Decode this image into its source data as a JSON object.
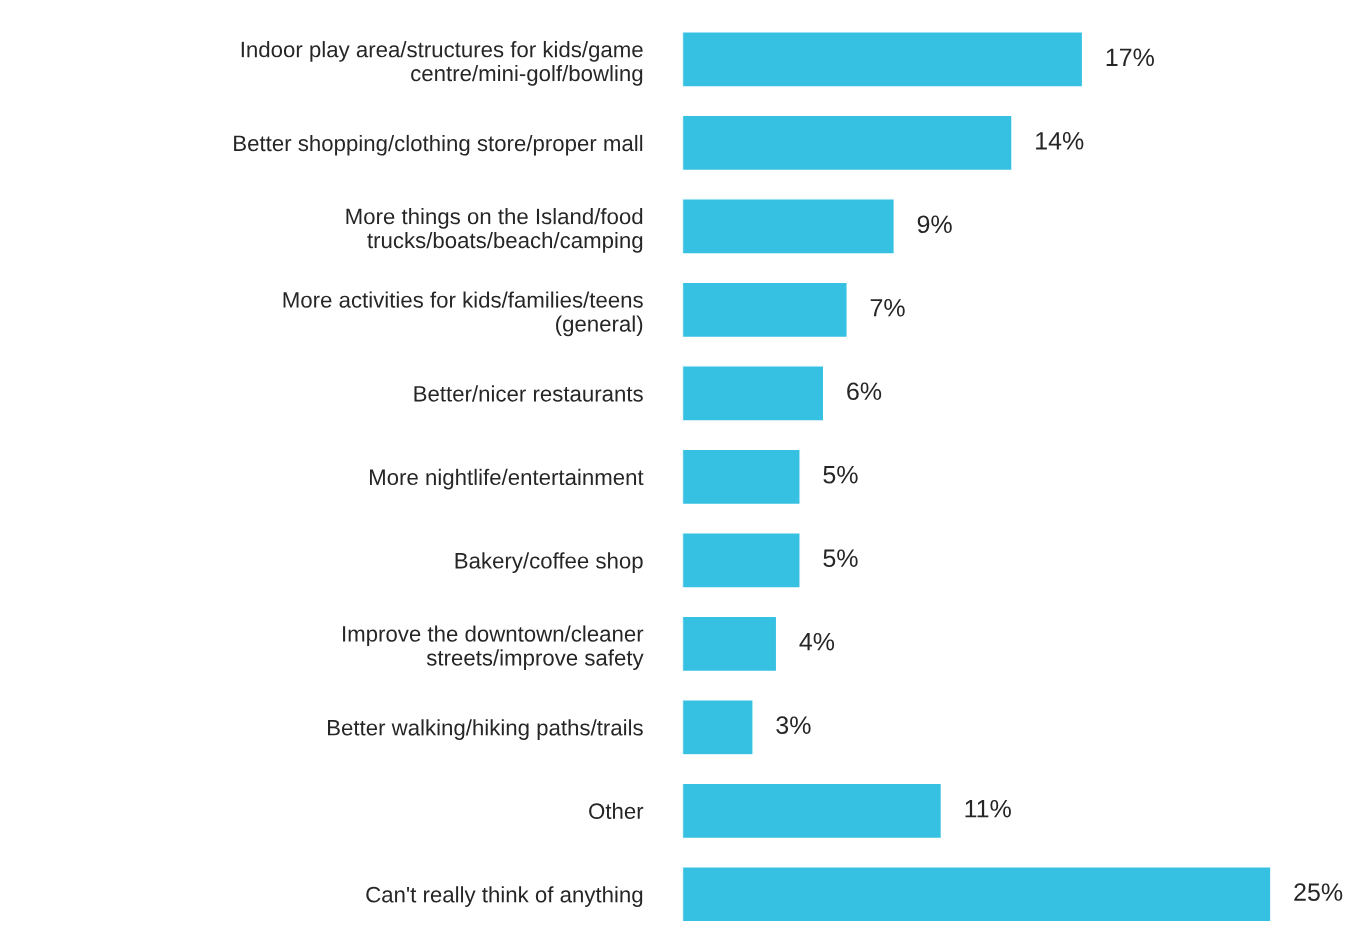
{
  "chart_data": {
    "type": "bar",
    "orientation": "horizontal",
    "categories": [
      "Indoor play area/structures for kids/game\ncentre/mini-golf/bowling",
      "Better shopping/clothing store/proper mall",
      "More things on the Island/food\ntrucks/boats/beach/camping",
      "More activities for kids/families/teens\n(general)",
      "Better/nicer restaurants",
      "More nightlife/entertainment",
      "Bakery/coffee shop",
      "Improve the downtown/cleaner\nstreets/improve safety",
      "Better walking/hiking paths/trails",
      "Other",
      "Can't really think of anything"
    ],
    "values": [
      17,
      14,
      9,
      7,
      6,
      5,
      5,
      4,
      3,
      11,
      25
    ],
    "value_labels": [
      "17%",
      "14%",
      "9%",
      "7%",
      "6%",
      "5%",
      "5%",
      "4%",
      "3%",
      "11%",
      "25%"
    ],
    "color": "#36c1e3",
    "grid": false,
    "legend": false
  }
}
